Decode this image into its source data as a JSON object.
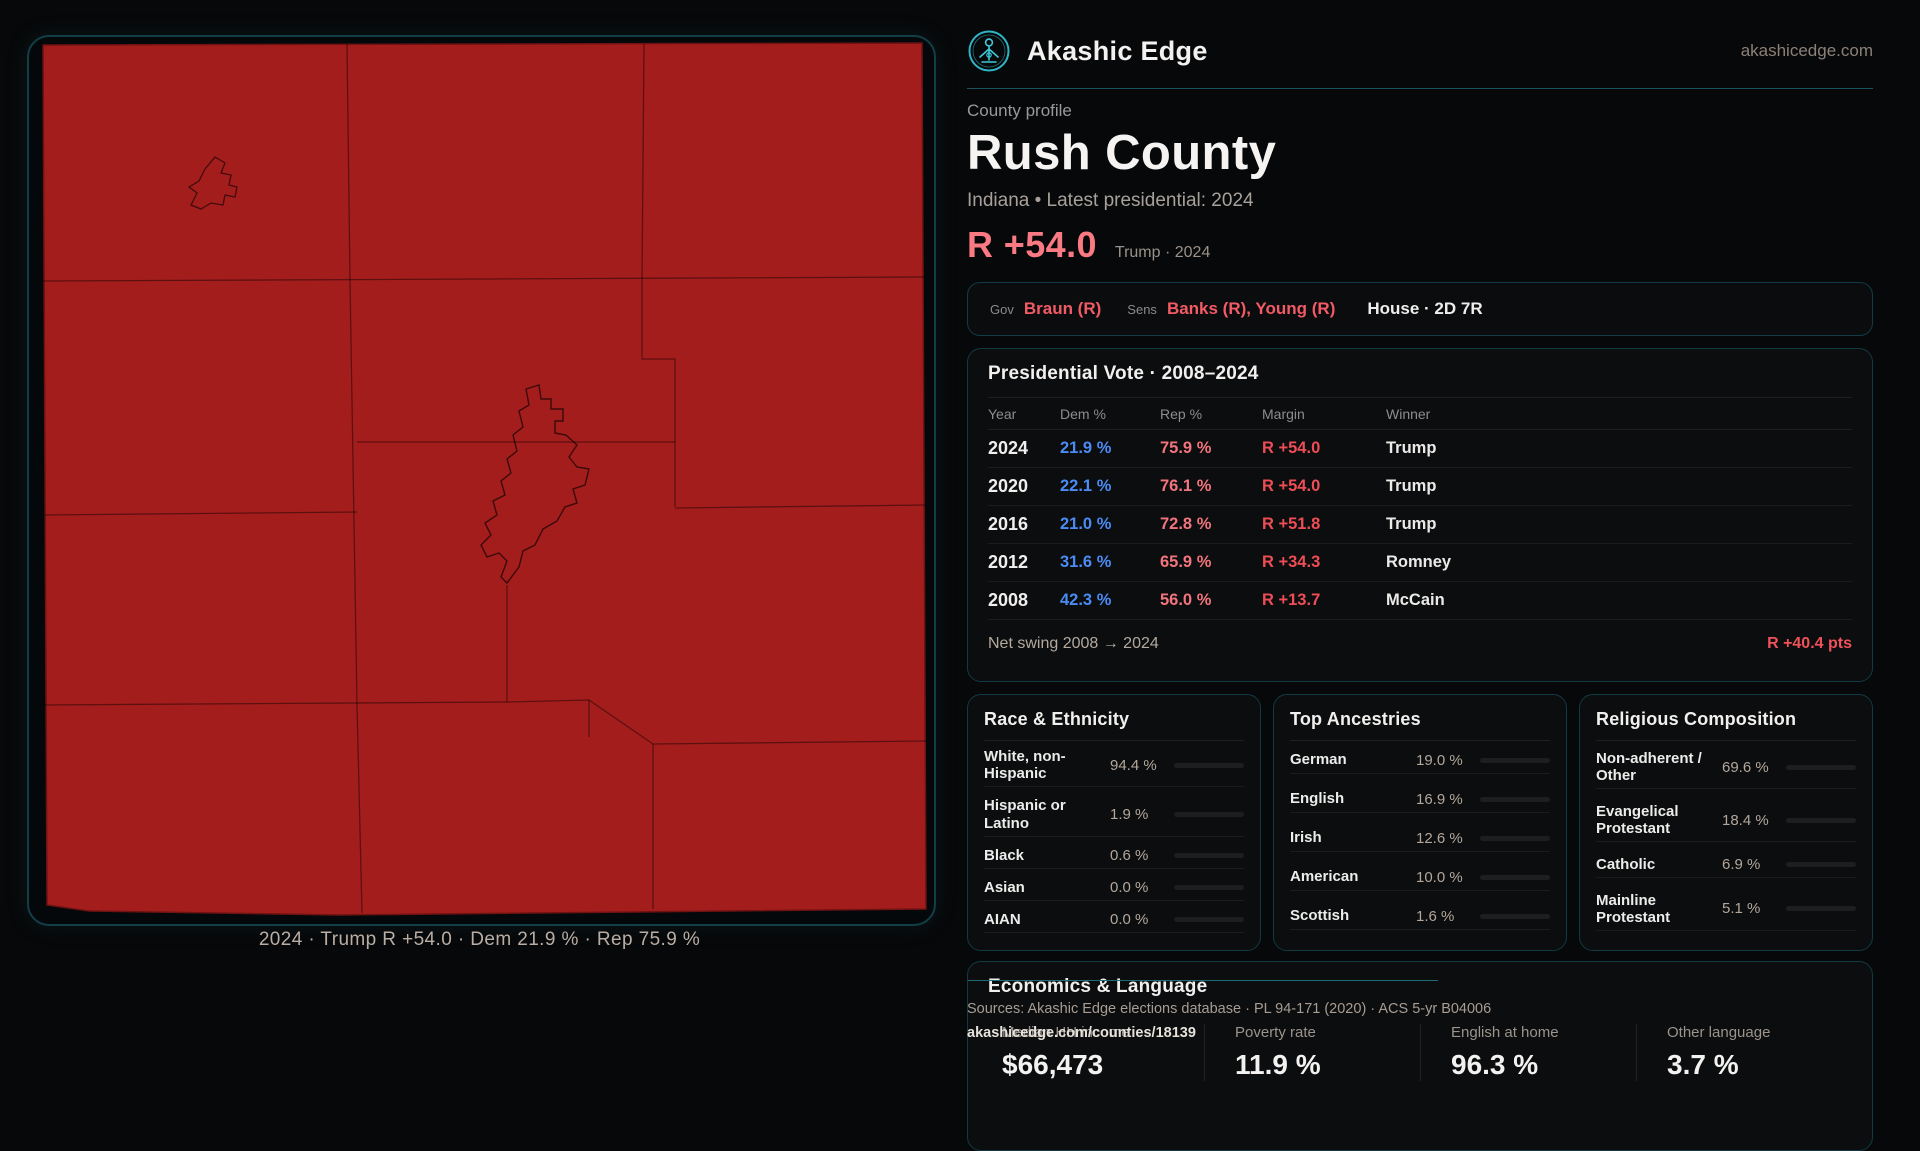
{
  "brand": {
    "name": "Akashic Edge",
    "domain": "akashicedge.com",
    "accent_teal": "#3ec9da"
  },
  "profile": {
    "kicker": "County profile",
    "title": "Rush County",
    "subtitle": "Indiana • Latest presidential: 2024",
    "headline_margin": "R +54.0",
    "headline_caption": "Trump · 2024"
  },
  "officials": {
    "gov_label": "Gov",
    "gov_value": "Braun (R)",
    "sens_label": "Sens",
    "sens_value": "Banks (R), Young (R)",
    "house_value": "House · 2D 7R"
  },
  "pres_table": {
    "title": "Presidential Vote · 2008–2024",
    "columns": [
      "Year",
      "Dem %",
      "Rep %",
      "Margin",
      "Winner"
    ],
    "rows": [
      {
        "year": "2024",
        "dem": "21.9 %",
        "rep": "75.9 %",
        "margin": "R +54.0",
        "winner": "Trump"
      },
      {
        "year": "2020",
        "dem": "22.1 %",
        "rep": "76.1 %",
        "margin": "R +54.0",
        "winner": "Trump"
      },
      {
        "year": "2016",
        "dem": "21.0 %",
        "rep": "72.8 %",
        "margin": "R +51.8",
        "winner": "Trump"
      },
      {
        "year": "2012",
        "dem": "31.6 %",
        "rep": "65.9 %",
        "margin": "R +34.3",
        "winner": "Romney"
      },
      {
        "year": "2008",
        "dem": "42.3 %",
        "rep": "56.0 %",
        "margin": "R +13.7",
        "winner": "McCain"
      }
    ],
    "net_swing_label": "Net swing 2008 → 2024",
    "net_swing_value": "R +40.4 pts",
    "dem_color": "#4b8bf4",
    "rep_color": "#f2747c",
    "margin_color": "#ee4d56"
  },
  "race": {
    "title": "Race & Ethnicity",
    "rows": [
      {
        "label": "White, non-Hispanic",
        "value": "94.4 %",
        "pct": 94.4,
        "color": "#a9bed8"
      },
      {
        "label": "Hispanic or Latino",
        "value": "1.9 %",
        "pct": 1.9,
        "color": "#dd9f35"
      },
      {
        "label": "Black",
        "value": "0.6 %",
        "pct": 0.6,
        "color": "#a9bed8"
      },
      {
        "label": "Asian",
        "value": "0.0 %",
        "pct": 0,
        "color": "#a9bed8"
      },
      {
        "label": "AIAN",
        "value": "0.0 %",
        "pct": 0,
        "color": "#a9bed8"
      }
    ]
  },
  "ancestries": {
    "title": "Top Ancestries",
    "rows": [
      {
        "label": "German",
        "value": "19.0 %",
        "pct": 19.0,
        "color": "#9db2ca"
      },
      {
        "label": "English",
        "value": "16.9 %",
        "pct": 16.9,
        "color": "#9db2ca"
      },
      {
        "label": "Irish",
        "value": "12.6 %",
        "pct": 12.6,
        "color": "#9db2ca"
      },
      {
        "label": "American",
        "value": "10.0 %",
        "pct": 10.0,
        "color": "#9db2ca"
      },
      {
        "label": "Scottish",
        "value": "1.6 %",
        "pct": 1.6,
        "color": "#c3cdd9"
      }
    ]
  },
  "religion": {
    "title": "Religious Composition",
    "rows": [
      {
        "label": "Non-adherent / Other",
        "value": "69.6 %",
        "pct": 69.6,
        "color": "#626c7c"
      },
      {
        "label": "Evangelical Protestant",
        "value": "18.4 %",
        "pct": 18.4,
        "color": "#e5707a"
      },
      {
        "label": "Catholic",
        "value": "6.9 %",
        "pct": 6.9,
        "color": "#e2b13c"
      },
      {
        "label": "Mainline Protestant",
        "value": "5.1 %",
        "pct": 5.1,
        "color": "#4a86e8"
      }
    ]
  },
  "economics": {
    "title": "Economics & Language",
    "stats": [
      {
        "label": "Median HH income",
        "value": "$66,473"
      },
      {
        "label": "Poverty rate",
        "value": "11.9 %"
      },
      {
        "label": "English at home",
        "value": "96.3 %"
      },
      {
        "label": "Other language",
        "value": "3.7 %"
      }
    ]
  },
  "footer": {
    "sources": "Sources: Akashic Edge elections database · PL 94-171 (2020) · ACS 5-yr B04006",
    "permalink": "akashicedge.com/counties/18139"
  },
  "map": {
    "caption": "2024 · Trump R +54.0 · Dem 21.9 % · Rep 75.9 %",
    "county_fill": "#a41d1d"
  }
}
